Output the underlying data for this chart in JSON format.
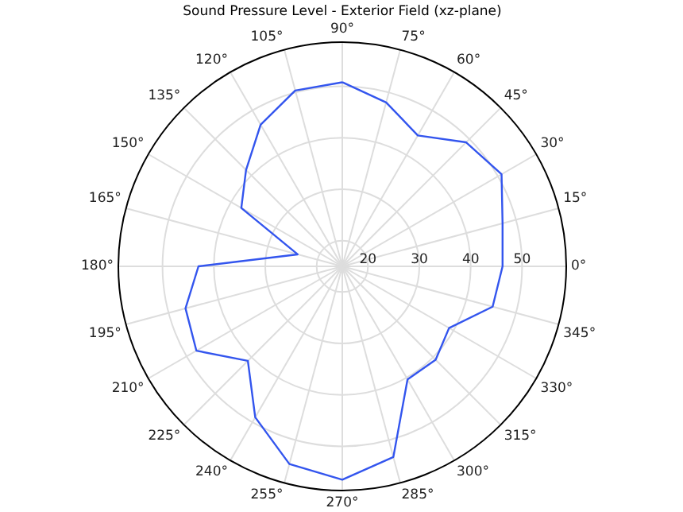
{
  "chart_data": {
    "type": "radar",
    "title": "Sound Pressure Level - Exterior Field (xz-plane)",
    "categories": [
      "90°",
      "75°",
      "60°",
      "45°",
      "30°",
      "15°",
      "0°",
      "345°",
      "330°",
      "315°",
      "300°",
      "285°",
      "270°",
      "255°",
      "240°",
      "225°",
      "210°",
      "195°",
      "180°",
      "165°",
      "150°",
      "135°",
      "120°",
      "105°"
    ],
    "ylim": [
      15,
      58.6
    ],
    "yticks": [
      20,
      30,
      40,
      50
    ],
    "grid": true,
    "series": [
      {
        "color": "#3355ee",
        "values": [
          50.8,
          48,
          44.4,
          49.1,
          50.8,
          47.3,
          46.2,
          45.3,
          39,
          40.7,
          40.4,
          53.4,
          56.5,
          54.8,
          48.9,
          41,
          47.8,
          46.6,
          43,
          24,
          37.7,
          41.5,
          46.8,
          50.4
        ]
      }
    ]
  }
}
